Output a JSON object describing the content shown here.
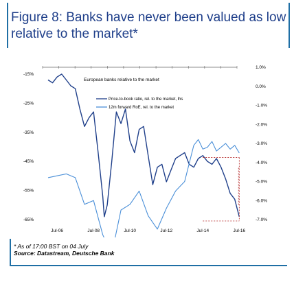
{
  "header": {
    "title": "Figure 8: Banks have never been valued as low relative to the market*"
  },
  "chart_data": {
    "type": "line",
    "title": "European banks relative to the market",
    "x_ticks": [
      "Jul-06",
      "Jul-08",
      "Jul-10",
      "Jul-12",
      "Jul-14",
      "Jul-16"
    ],
    "y_left_ticks": [
      "-15%",
      "-25%",
      "-35%",
      "-45%",
      "-55%",
      "-65%"
    ],
    "y_right_ticks": [
      "1.0%",
      "0.0%",
      "-1.0%",
      "-2.0%",
      "-3.0%",
      "-4.0%",
      "-5.0%",
      "-6.0%",
      "-7.0%"
    ],
    "ylim_left": [
      -65,
      -15
    ],
    "ylim_right": [
      -7,
      1
    ],
    "legend_placement": "top-center",
    "series": [
      {
        "name": "Price-to-book ratio, rel. to the market, lhs",
        "axis": "left",
        "color": "#1f3f8a",
        "x": [
          "2006-01-01",
          "2006-04-01",
          "2006-07-01",
          "2006-10-01",
          "2007-01-01",
          "2007-04-01",
          "2007-07-01",
          "2007-10-01",
          "2008-01-01",
          "2008-04-01",
          "2008-07-01",
          "2008-10-01",
          "2009-01-01",
          "2009-02-01",
          "2009-04-01",
          "2009-07-01",
          "2009-10-01",
          "2010-01-01",
          "2010-04-01",
          "2010-07-01",
          "2010-10-01",
          "2011-01-01",
          "2011-04-01",
          "2011-07-01",
          "2011-10-01",
          "2012-01-01",
          "2012-04-01",
          "2012-07-01",
          "2012-10-01",
          "2013-01-01",
          "2013-04-01",
          "2013-07-01",
          "2013-10-01",
          "2014-01-01",
          "2014-04-01",
          "2014-07-01",
          "2014-10-01",
          "2015-01-01",
          "2015-04-01",
          "2015-07-01",
          "2015-10-01",
          "2016-01-01",
          "2016-04-01",
          "2016-07-01"
        ],
        "values": [
          -17,
          -18,
          -16,
          -15,
          -17,
          -19,
          -20,
          -27,
          -33,
          -30,
          -28,
          -42,
          -57,
          -64,
          -60,
          -45,
          -28,
          -32,
          -27,
          -38,
          -42,
          -34,
          -33,
          -43,
          -53,
          -47,
          -46,
          -52,
          -48,
          -44,
          -43,
          -42,
          -46,
          -47,
          -44,
          -43,
          -45,
          -46,
          -44,
          -47,
          -51,
          -56,
          -58,
          -64
        ]
      },
      {
        "name": "12m forward RoE, rel. to the market",
        "axis": "right",
        "color": "#4a8fd8",
        "x": [
          "2006-01-01",
          "2006-07-01",
          "2007-01-01",
          "2007-07-01",
          "2008-01-01",
          "2008-07-01",
          "2009-01-01",
          "2009-07-01",
          "2010-01-01",
          "2010-07-01",
          "2011-01-01",
          "2011-07-01",
          "2012-01-01",
          "2012-07-01",
          "2013-01-01",
          "2013-07-01",
          "2014-01-01",
          "2014-04-01",
          "2014-07-01",
          "2014-10-01",
          "2015-01-01",
          "2015-04-01",
          "2015-07-01",
          "2015-10-01",
          "2016-01-01",
          "2016-04-01",
          "2016-07-01"
        ],
        "values": [
          -4.8,
          -4.7,
          -4.6,
          -4.8,
          -6.2,
          -6.0,
          -7.8,
          -8.8,
          -6.5,
          -6.2,
          -5.5,
          -6.8,
          -7.5,
          -6.4,
          -5.5,
          -5.0,
          -3.1,
          -2.8,
          -3.3,
          -3.2,
          -2.9,
          -3.4,
          -3.2,
          -3.0,
          -3.3,
          -3.1,
          -3.5
        ]
      }
    ]
  },
  "footer": {
    "note": "* As of 17:00 BST on 04 July",
    "source": "Source: Datastream, Deutsche Bank"
  }
}
